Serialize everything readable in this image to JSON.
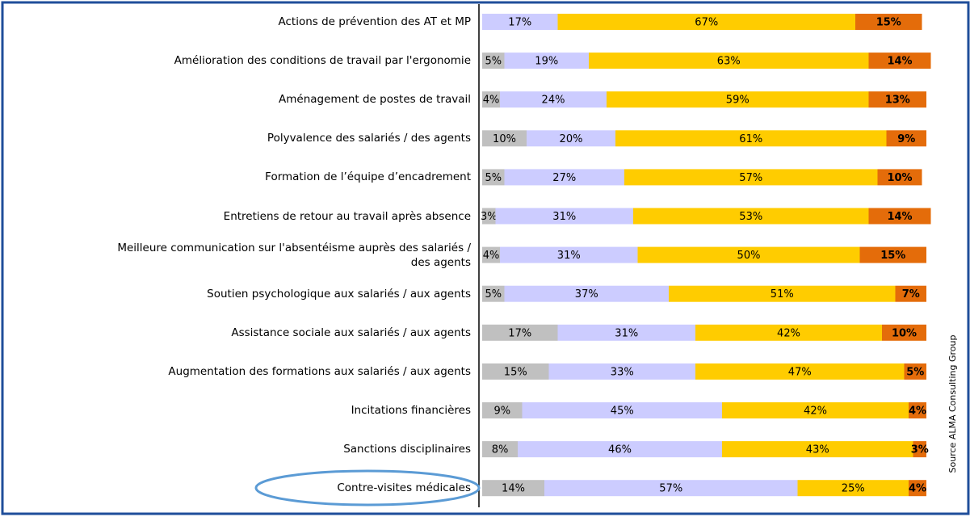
{
  "chart_data": {
    "type": "stacked-bar-horizontal",
    "categories": [
      "Actions de prévention des AT et MP",
      "Amélioration des conditions de travail par l'ergonomie",
      "Aménagement de postes de travail",
      "Polyvalence des salariés / des agents",
      "Formation de l’équipe d’encadrement",
      "Entretiens de retour au travail après absence",
      "Meilleure communication sur l'absentéisme auprès des salariés /\ndes agents",
      "Soutien psychologique aux salariés / aux agents",
      "Assistance sociale aux salariés / aux agents",
      "Augmentation des formations aux salariés / aux agents",
      "Incitations financières",
      "Sanctions disciplinaires",
      "Contre-visites médicales"
    ],
    "xlim": [
      0,
      100
    ],
    "series": [
      {
        "color": "#c0c0c0",
        "values": [
          null,
          5,
          4,
          10,
          5,
          3,
          4,
          5,
          17,
          15,
          9,
          8,
          14
        ],
        "value_labels": [
          null,
          "5%",
          "4%",
          "10%",
          "5%",
          "3%",
          "4%",
          "5%",
          "17%",
          "15%",
          "9%",
          "8%",
          "14%"
        ]
      },
      {
        "color": "#ccccff",
        "values": [
          17,
          19,
          24,
          20,
          27,
          31,
          31,
          37,
          31,
          33,
          45,
          46,
          57
        ],
        "value_labels": [
          "17%",
          "19%",
          "24%",
          "20%",
          "27%",
          "31%",
          "31%",
          "37%",
          "31%",
          "33%",
          "45%",
          "46%",
          "57%"
        ]
      },
      {
        "color": "#ffcc00",
        "values": [
          67,
          63,
          59,
          61,
          57,
          53,
          50,
          51,
          42,
          47,
          42,
          43,
          25
        ],
        "value_labels": [
          "67%",
          "63%",
          "59%",
          "61%",
          "57%",
          "53%",
          "50%",
          "51%",
          "42%",
          "47%",
          "42%",
          "43%",
          "25%"
        ]
      },
      {
        "color": "#e46c0a",
        "values": [
          15,
          14,
          13,
          9,
          10,
          14,
          15,
          7,
          10,
          5,
          4,
          3,
          4
        ],
        "value_labels": [
          "15%",
          "14%",
          "13%",
          "9%",
          "10%",
          "14%",
          "15%",
          "7%",
          "10%",
          "5%",
          "4%",
          "3%",
          "4%"
        ]
      }
    ],
    "annotation": "Source ALMA Consulting Group"
  }
}
